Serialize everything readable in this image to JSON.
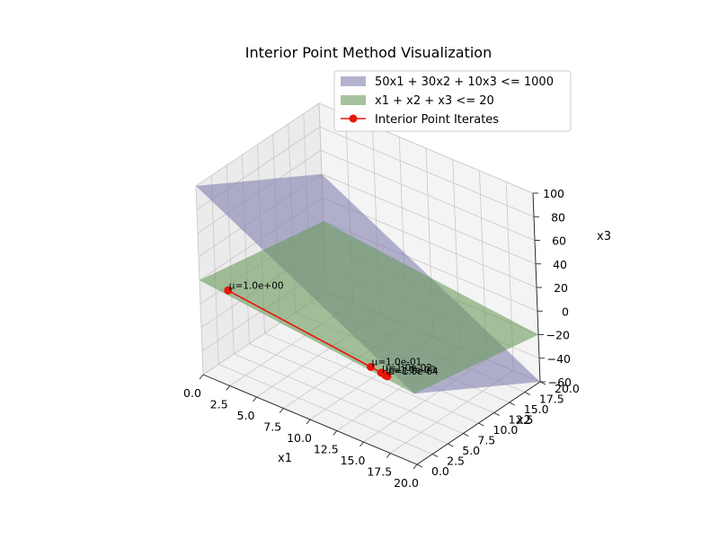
{
  "chart_data": {
    "type": "3d-surface-line",
    "title": "Interior Point Method Visualization",
    "xlabel": "x1",
    "ylabel": "x2",
    "zlabel": "x3",
    "xlim": [
      0,
      20
    ],
    "ylim": [
      0,
      20
    ],
    "zlim": [
      -60,
      100
    ],
    "x_ticks": [
      "0.0",
      "2.5",
      "5.0",
      "7.5",
      "10.0",
      "12.5",
      "15.0",
      "17.5",
      "20.0"
    ],
    "y_ticks": [
      "0.0",
      "2.5",
      "5.0",
      "7.5",
      "10.0",
      "12.5",
      "15.0",
      "17.5",
      "20.0"
    ],
    "z_ticks": [
      "100",
      "80",
      "60",
      "40",
      "20",
      "0",
      "−20",
      "−40",
      "−60"
    ],
    "grid": true,
    "legend_position": "top-right",
    "series": [
      {
        "name": "50x1 + 30x2 + 10x3 <= 1000",
        "kind": "plane",
        "color": "#8080b0",
        "corners": [
          [
            0,
            0,
            100
          ],
          [
            0,
            20,
            40
          ],
          [
            20,
            20,
            -60
          ],
          [
            20,
            0,
            0
          ]
        ]
      },
      {
        "name": "x1 + x2 + x3 <= 20",
        "kind": "plane",
        "color": "#6b9b5e",
        "corners": [
          [
            0,
            0,
            20
          ],
          [
            0,
            20,
            0
          ],
          [
            20,
            20,
            -20
          ],
          [
            20,
            0,
            0
          ]
        ]
      },
      {
        "name": "Interior Point Iterates",
        "kind": "line",
        "color": "#e8160c",
        "points": [
          [
            2.2,
            0.8,
            17.0
          ],
          [
            15.6,
            0.6,
            3.8
          ],
          [
            16.6,
            0.55,
            2.9
          ],
          [
            17.0,
            0.5,
            2.5
          ],
          [
            17.2,
            0.5,
            2.3
          ]
        ],
        "labels": [
          "μ=1.0e+00",
          "μ=1.0e-01",
          "μ=1.0e-02",
          "μ=1.0e-03",
          "μ=1.0e-04"
        ]
      }
    ]
  }
}
